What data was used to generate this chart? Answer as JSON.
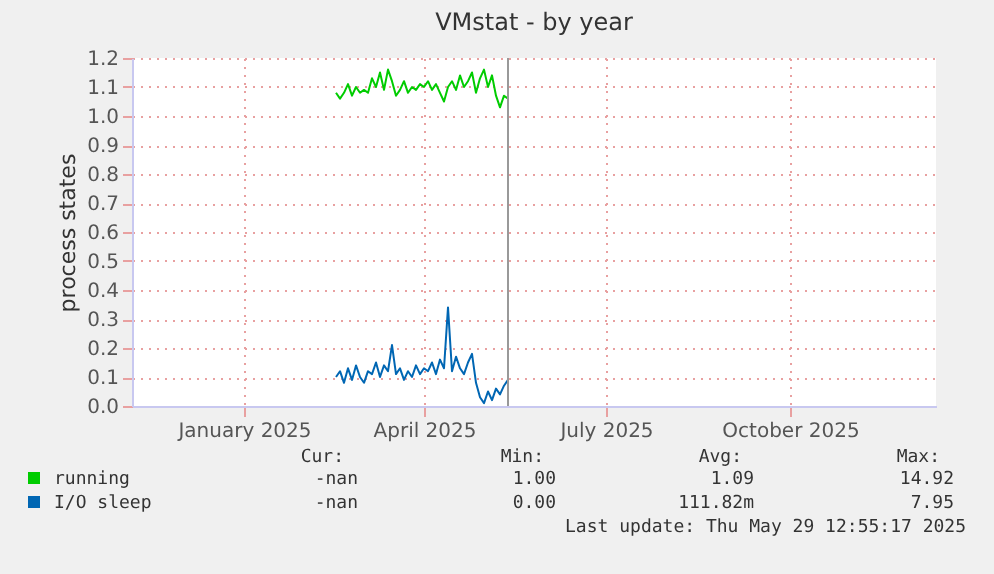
{
  "chart_data": {
    "type": "line",
    "title": "VMstat - by year",
    "ylabel": "process states",
    "xlim": [
      "2024-11-06",
      "2025-12-13"
    ],
    "xticks": [
      {
        "value": "2025-01-01",
        "label": "January 2025"
      },
      {
        "value": "2025-04-01",
        "label": "April 2025"
      },
      {
        "value": "2025-07-01",
        "label": "July 2025"
      },
      {
        "value": "2025-10-01",
        "label": "October 2025"
      }
    ],
    "ylim": [
      0,
      1.2
    ],
    "yticks": [
      {
        "value": 0,
        "label": "0.0"
      },
      0.1,
      0.2,
      0.3,
      0.4,
      0.5,
      0.6,
      0.7,
      0.8,
      0.9,
      {
        "value": 1,
        "label": "1.0"
      },
      1.1,
      1.2
    ],
    "grid": true,
    "legend": "bottom",
    "x": [
      "2025-02-16",
      "2025-02-18",
      "2025-02-20",
      "2025-02-22",
      "2025-02-24",
      "2025-02-26",
      "2025-02-28",
      "2025-03-02",
      "2025-03-04",
      "2025-03-06",
      "2025-03-08",
      "2025-03-10",
      "2025-03-12",
      "2025-03-14",
      "2025-03-16",
      "2025-03-18",
      "2025-03-20",
      "2025-03-22",
      "2025-03-24",
      "2025-03-26",
      "2025-03-28",
      "2025-03-30",
      "2025-04-01",
      "2025-04-03",
      "2025-04-05",
      "2025-04-07",
      "2025-04-09",
      "2025-04-11",
      "2025-04-13",
      "2025-04-15",
      "2025-04-17",
      "2025-04-19",
      "2025-04-21",
      "2025-04-23",
      "2025-04-25",
      "2025-04-27",
      "2025-04-29",
      "2025-05-01",
      "2025-05-03",
      "2025-05-05",
      "2025-05-07",
      "2025-05-09",
      "2025-05-11",
      "2025-05-13"
    ],
    "series": [
      {
        "name": "running",
        "color": "#00cc00",
        "values": [
          1.08,
          1.06,
          1.08,
          1.11,
          1.07,
          1.1,
          1.08,
          1.09,
          1.08,
          1.13,
          1.1,
          1.15,
          1.09,
          1.16,
          1.12,
          1.07,
          1.09,
          1.12,
          1.08,
          1.1,
          1.09,
          1.11,
          1.1,
          1.12,
          1.09,
          1.11,
          1.08,
          1.05,
          1.1,
          1.12,
          1.09,
          1.14,
          1.1,
          1.12,
          1.15,
          1.08,
          1.13,
          1.16,
          1.1,
          1.14,
          1.07,
          1.03,
          1.07,
          1.06
        ]
      },
      {
        "name": "I/O sleep",
        "color": "#0066b3",
        "values": [
          0.1,
          0.12,
          0.08,
          0.13,
          0.09,
          0.14,
          0.1,
          0.08,
          0.12,
          0.11,
          0.15,
          0.1,
          0.14,
          0.12,
          0.21,
          0.11,
          0.13,
          0.09,
          0.12,
          0.1,
          0.14,
          0.11,
          0.13,
          0.12,
          0.15,
          0.11,
          0.16,
          0.13,
          0.34,
          0.12,
          0.17,
          0.13,
          0.11,
          0.15,
          0.18,
          0.08,
          0.03,
          0.01,
          0.05,
          0.02,
          0.06,
          0.04,
          0.07,
          0.09
        ]
      }
    ],
    "ref_lines": [
      {
        "axis": "x",
        "value": "2025-05-13",
        "color": "#999999"
      }
    ],
    "annotations": [
      "Cur:",
      "Min:",
      "Avg:",
      "Max:",
      "-nan",
      "1.00",
      "1.09",
      "14.92",
      "-nan",
      "0.00",
      "111.82m",
      "7.95",
      "Last update: Thu May 29 12:55:17 2025"
    ]
  }
}
